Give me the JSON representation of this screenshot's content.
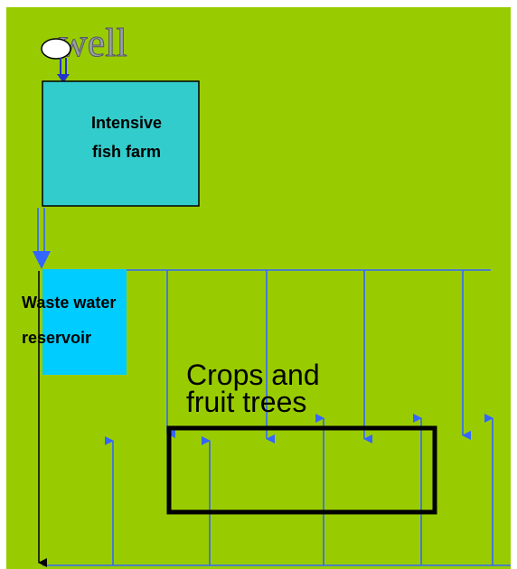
{
  "well": {
    "label": "well"
  },
  "nodes": [
    {
      "lines": [
        "Intensive",
        "fish farm"
      ]
    },
    {
      "lines": [
        "Waste water",
        "reservoir"
      ]
    },
    {
      "lines": [
        "Crops and",
        "fruit trees"
      ]
    }
  ]
}
